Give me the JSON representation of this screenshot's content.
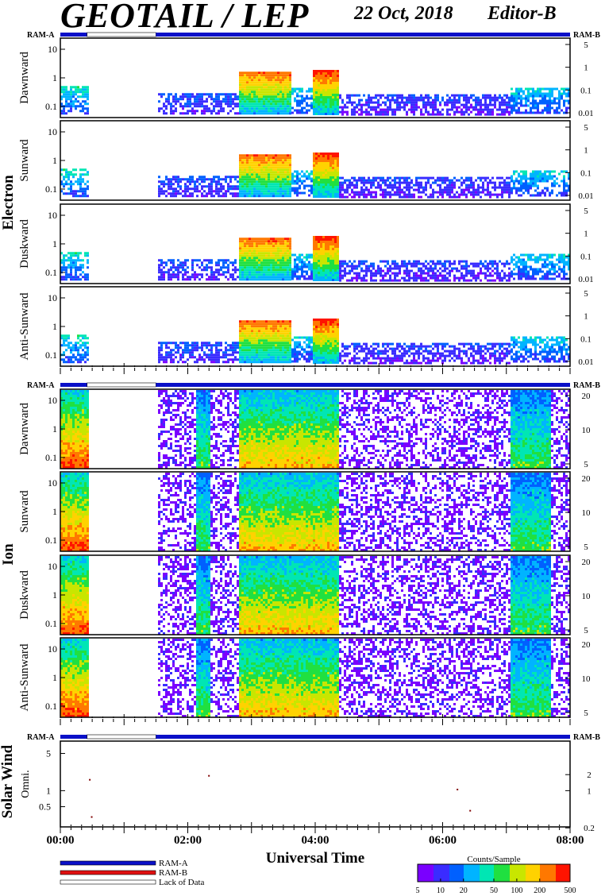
{
  "header": {
    "title": "GEOTAIL / LEP",
    "date": "22 Oct, 2018",
    "editor": "Editor-B"
  },
  "colors": {
    "ram_a": "#0a10c8",
    "ram_b": "#e01010",
    "panel_border": "#000000",
    "colormap": [
      "#7a00ff",
      "#3a2cff",
      "#0060ff",
      "#00b4ff",
      "#00e6b4",
      "#20e040",
      "#c8e600",
      "#ffd200",
      "#ff7800",
      "#ff1400"
    ]
  },
  "chart_data": {
    "type": "heatmap",
    "xlabel": "Universal Time",
    "x_ticks": [
      "00:00",
      "02:00",
      "04:00",
      "06:00",
      "08:00"
    ],
    "x_range_hours": [
      0,
      8
    ],
    "ram_labels": {
      "left": "RAM-A",
      "right": "RAM-B"
    },
    "ram_status_segments": [
      {
        "start": 0.0,
        "end": 0.42,
        "mode": "RAM-A"
      },
      {
        "start": 0.42,
        "end": 1.5,
        "mode": "Lack of Data"
      },
      {
        "start": 1.5,
        "end": 8.0,
        "mode": "RAM-A"
      }
    ],
    "groups": [
      {
        "name": "Electron",
        "y_ticks_left": [
          "10",
          "1",
          "0.1"
        ],
        "y_ticks_right": [
          "5",
          "1",
          "0.1",
          "0.01"
        ],
        "panels": [
          {
            "label": "Dawnward"
          },
          {
            "label": "Sunward"
          },
          {
            "label": "Duskward"
          },
          {
            "label": "Anti-Sunward"
          }
        ],
        "activity": [
          {
            "start": 0.0,
            "end": 0.42,
            "level": 0.35
          },
          {
            "start": 1.5,
            "end": 2.8,
            "level": 0.15
          },
          {
            "start": 2.8,
            "end": 3.6,
            "level": 0.75
          },
          {
            "start": 3.6,
            "end": 3.95,
            "level": 0.3
          },
          {
            "start": 3.95,
            "end": 4.35,
            "level": 0.8
          },
          {
            "start": 4.35,
            "end": 7.05,
            "level": 0.12
          },
          {
            "start": 7.05,
            "end": 8.0,
            "level": 0.3
          }
        ]
      },
      {
        "name": "Ion",
        "y_ticks_left": [
          "10",
          "1",
          "0.1"
        ],
        "y_ticks_right": [
          "20",
          "10",
          "5"
        ],
        "panels": [
          {
            "label": "Dawnward"
          },
          {
            "label": "Sunward"
          },
          {
            "label": "Duskward"
          },
          {
            "label": "Anti-Sunward"
          }
        ],
        "activity": [
          {
            "start": 0.0,
            "end": 0.42,
            "level": 0.95
          },
          {
            "start": 1.5,
            "end": 2.1,
            "level": 0.25
          },
          {
            "start": 2.1,
            "end": 2.35,
            "level": 0.55
          },
          {
            "start": 2.35,
            "end": 2.8,
            "level": 0.25
          },
          {
            "start": 2.8,
            "end": 4.35,
            "level": 0.8
          },
          {
            "start": 4.35,
            "end": 7.05,
            "level": 0.25
          },
          {
            "start": 7.05,
            "end": 7.7,
            "level": 0.55
          },
          {
            "start": 7.7,
            "end": 8.0,
            "level": 0.25
          }
        ]
      },
      {
        "name": "Solar Wind",
        "y_ticks_left": [
          "5",
          "1",
          "0.5"
        ],
        "y_ticks_right": [
          "2",
          "1",
          "0.2"
        ],
        "panels": [
          {
            "label": "Omni."
          }
        ],
        "points": [
          {
            "t": 0.45,
            "v": 1.6
          },
          {
            "t": 0.48,
            "v": 0.32
          },
          {
            "t": 2.32,
            "v": 1.9
          },
          {
            "t": 6.22,
            "v": 1.05
          },
          {
            "t": 6.42,
            "v": 0.42
          }
        ]
      }
    ],
    "legend": {
      "entries": [
        "RAM-A",
        "RAM-B",
        "Lack of Data"
      ]
    },
    "colorbar": {
      "title": "Counts/Sample",
      "ticks": [
        "5",
        "10",
        "20",
        "50",
        "100",
        "200",
        "500"
      ]
    }
  }
}
